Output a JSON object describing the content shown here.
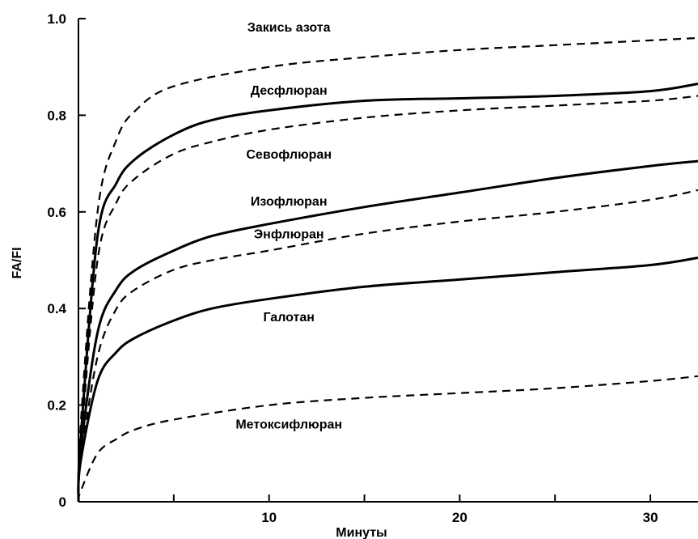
{
  "chart_data": {
    "type": "line",
    "title": "",
    "xlabel": "Минуты",
    "ylabel": "FA/FI",
    "xlim": [
      0,
      32.5
    ],
    "ylim": [
      0,
      1.0
    ],
    "xticks": [
      5,
      10,
      15,
      20,
      25,
      30
    ],
    "xtick_labels": [
      "",
      "10",
      "",
      "20",
      "",
      "30"
    ],
    "yticks": [
      0,
      0.2,
      0.4,
      0.6,
      0.8,
      1.0
    ],
    "ytick_labels": [
      "0",
      "0.2",
      "0.4",
      "0.6",
      "0.8",
      "1.0"
    ],
    "grid": false,
    "series": [
      {
        "name": "Закись азота",
        "style": "dashed",
        "x": [
          0.1,
          1,
          2,
          3,
          5,
          10,
          15,
          20,
          25,
          30,
          32.5
        ],
        "y": [
          0.15,
          0.6,
          0.75,
          0.81,
          0.86,
          0.9,
          0.92,
          0.935,
          0.945,
          0.955,
          0.96
        ]
      },
      {
        "name": "Десфлюран",
        "style": "solid",
        "x": [
          0.1,
          1,
          2,
          3,
          5,
          7,
          10,
          15,
          20,
          25,
          30,
          32.5
        ],
        "y": [
          0.12,
          0.55,
          0.66,
          0.71,
          0.76,
          0.79,
          0.81,
          0.83,
          0.835,
          0.84,
          0.85,
          0.865
        ]
      },
      {
        "name": "Севофлюран",
        "style": "dashed",
        "x": [
          0.1,
          1,
          2,
          3,
          5,
          7,
          10,
          15,
          20,
          25,
          30,
          32.5
        ],
        "y": [
          0.1,
          0.5,
          0.62,
          0.67,
          0.72,
          0.745,
          0.77,
          0.795,
          0.81,
          0.82,
          0.83,
          0.84
        ]
      },
      {
        "name": "Изофлюран",
        "style": "solid",
        "x": [
          0.1,
          1,
          2,
          3,
          5,
          7,
          10,
          15,
          20,
          25,
          30,
          32.5
        ],
        "y": [
          0.1,
          0.35,
          0.44,
          0.48,
          0.52,
          0.55,
          0.575,
          0.61,
          0.64,
          0.67,
          0.695,
          0.705
        ]
      },
      {
        "name": "Энфлюран",
        "style": "dashed",
        "x": [
          0.1,
          1,
          2,
          3,
          5,
          7,
          10,
          15,
          20,
          25,
          30,
          32.5
        ],
        "y": [
          0.08,
          0.3,
          0.4,
          0.44,
          0.48,
          0.5,
          0.52,
          0.555,
          0.58,
          0.6,
          0.625,
          0.645
        ]
      },
      {
        "name": "Галотан",
        "style": "solid",
        "x": [
          0.1,
          1,
          2,
          3,
          5,
          7,
          10,
          15,
          20,
          25,
          30,
          32.5
        ],
        "y": [
          0.08,
          0.25,
          0.31,
          0.34,
          0.375,
          0.4,
          0.42,
          0.445,
          0.46,
          0.475,
          0.49,
          0.505
        ]
      },
      {
        "name": "Метоксифлюран",
        "style": "dashed",
        "x": [
          0.1,
          1,
          2,
          3,
          5,
          10,
          15,
          20,
          25,
          30,
          32.5
        ],
        "y": [
          0.02,
          0.1,
          0.13,
          0.15,
          0.17,
          0.2,
          0.215,
          0.225,
          0.235,
          0.25,
          0.26
        ]
      }
    ]
  }
}
